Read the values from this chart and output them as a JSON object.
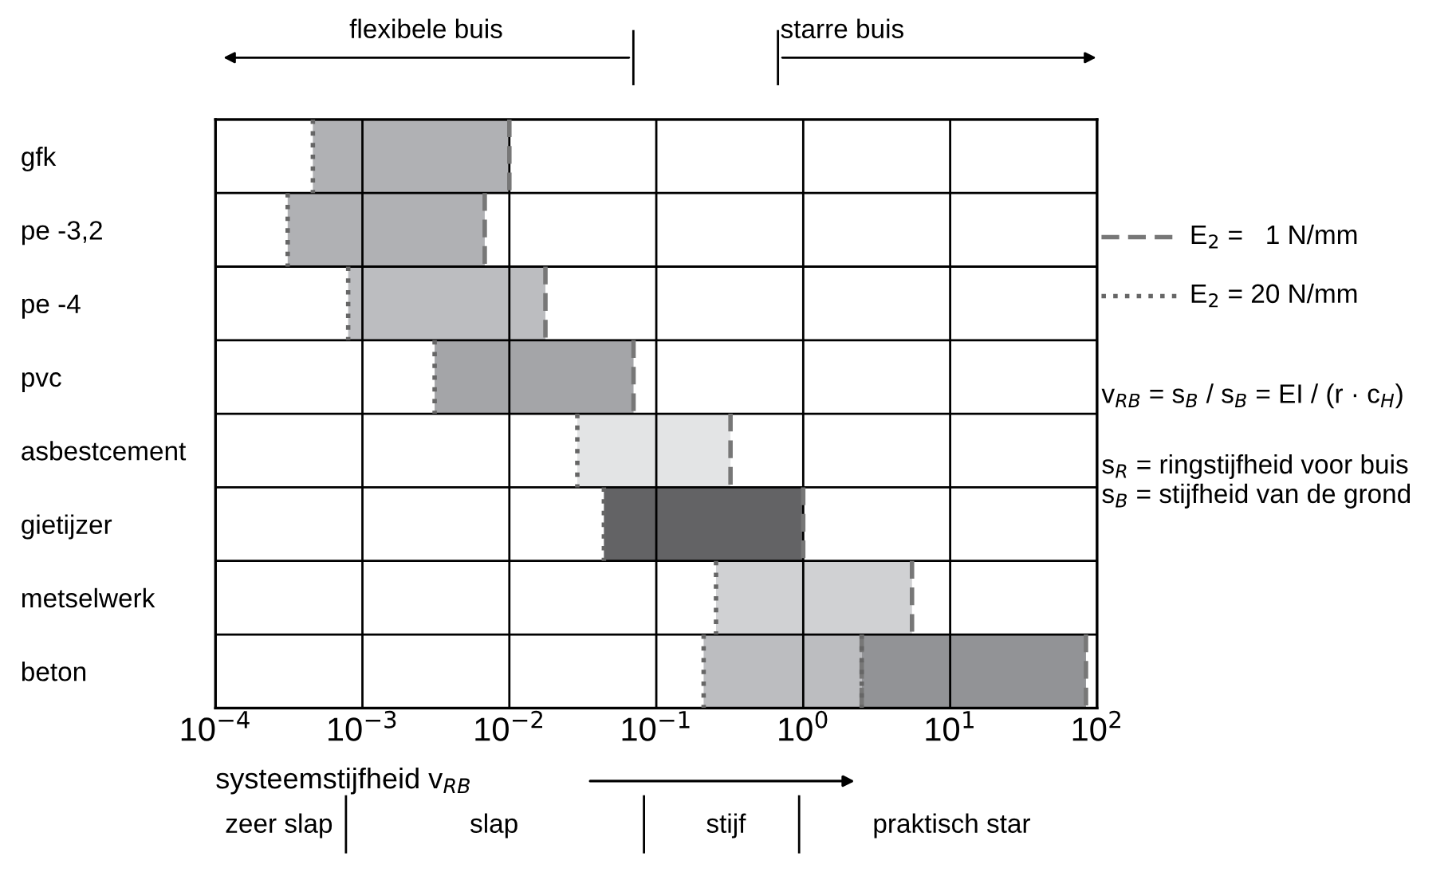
{
  "chart_data": {
    "type": "bar",
    "orientation": "horizontal",
    "log": "x",
    "categories": [
      "gfk",
      "pe -3,2",
      "pe -4",
      "pvc",
      "asbestcement",
      "gietijzer",
      "metselwerk",
      "beton"
    ],
    "series": [
      {
        "colors": [
          "#b0b1b4",
          "#b0b1b4",
          "#bcbdc0",
          "#a4a5a8",
          "#e3e4e5",
          "#636365",
          "#d0d1d3",
          "#bcbdc0"
        ],
        "base": [
          0.00046,
          0.00031,
          0.0008,
          0.0031,
          0.029,
          0.044,
          0.255,
          0.21
        ],
        "values": [
          0.00954,
          0.00649,
          0.0168,
          0.0669,
          0.291,
          0.956,
          5.245,
          2.29
        ]
      },
      {
        "color": "#929396",
        "base": [
          null,
          null,
          null,
          null,
          null,
          null,
          null,
          2.5
        ],
        "values": [
          null,
          null,
          null,
          null,
          null,
          null,
          null,
          81.5
        ]
      }
    ],
    "xlim": [
      0.0001,
      100
    ],
    "xticks": [
      {
        "value": 0.0001,
        "label": "10$^{−4}$"
      },
      {
        "value": 0.001,
        "label": "10$^{−3}$"
      },
      {
        "value": 0.01,
        "label": "10$^{−2}$"
      },
      {
        "value": 0.1,
        "label": "10$^{−1}$"
      },
      {
        "value": 1,
        "label": "10$^{0}$"
      },
      {
        "value": 10,
        "label": "10$^{1}$"
      },
      {
        "value": 100,
        "label": "10$^{2}$"
      }
    ],
    "xlabel": "systeemstijfheid v$_{RB}$",
    "grid": true,
    "annotations": [
      "E$_{2}$ =   1 N/mm",
      "E$_{2}$ = 20 N/mm",
      "v$_{RB}$ = s$_{B}$ / s$_{B}$ = EI / (r · c$_{H}$)",
      "s$_{R}$ = ringstijfheid voor buis",
      "s$_{B}$ = stijfheid van de grond",
      "flexibele buis",
      "starre buis",
      "zeer slap",
      "slap",
      "stijf",
      "praktisch star"
    ]
  }
}
